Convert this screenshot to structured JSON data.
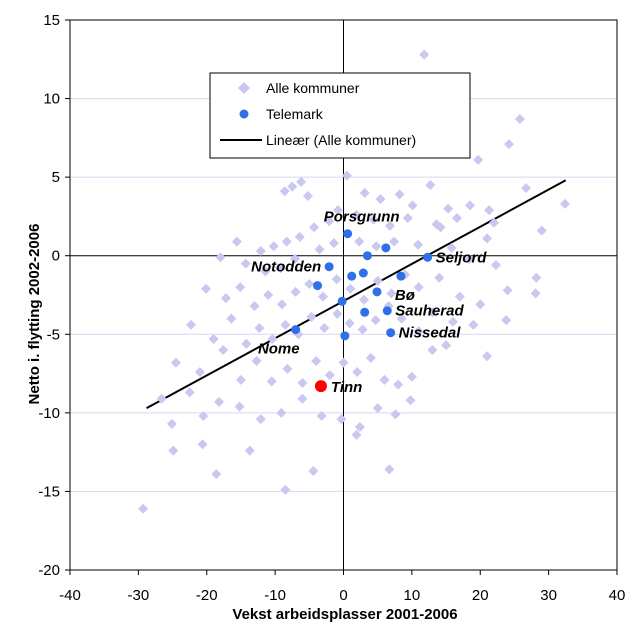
{
  "chart_data": {
    "type": "scatter",
    "title": "",
    "xlabel": "Vekst arbeidsplasser 2001-2006",
    "ylabel": "Netto i. flytting 2002-2006",
    "xlim": [
      -40,
      40
    ],
    "ylim": [
      -20,
      15
    ],
    "x_ticks": [
      -40,
      -30,
      -20,
      -10,
      0,
      10,
      20,
      30,
      40
    ],
    "y_ticks": [
      -20,
      -15,
      -10,
      -5,
      0,
      5,
      10,
      15
    ],
    "grid": "horizontal",
    "legend": {
      "placement": "top-center",
      "entries": [
        {
          "label": "Alle kommuner",
          "marker": "diamond",
          "color": "#c8c8f0"
        },
        {
          "label": "Telemark",
          "marker": "circle",
          "color": "#2f6fe8"
        },
        {
          "label": "Lineær (Alle kommuner)",
          "marker": "line",
          "color": "#000000"
        }
      ]
    },
    "series": [
      {
        "name": "Alle kommuner",
        "marker": "diamond",
        "color": "#c8c8f0",
        "points": [
          [
            11.8,
            12.8
          ],
          [
            25.8,
            8.7
          ],
          [
            24.2,
            7.1
          ],
          [
            19.7,
            6.1
          ],
          [
            26.7,
            4.3
          ],
          [
            32.4,
            3.3
          ],
          [
            18.5,
            3.2
          ],
          [
            21.3,
            2.9
          ],
          [
            16.6,
            2.4
          ],
          [
            22.0,
            2.1
          ],
          [
            14.2,
            1.8
          ],
          [
            21.0,
            1.1
          ],
          [
            29.0,
            1.6
          ],
          [
            -6.2,
            4.7
          ],
          [
            -7.5,
            4.4
          ],
          [
            -8.6,
            4.1
          ],
          [
            -5.2,
            3.8
          ],
          [
            0.5,
            5.1
          ],
          [
            3.1,
            4.0
          ],
          [
            5.4,
            3.6
          ],
          [
            8.2,
            3.9
          ],
          [
            10.1,
            3.2
          ],
          [
            12.7,
            4.5
          ],
          [
            15.3,
            3.0
          ],
          [
            -0.8,
            2.9
          ],
          [
            1.9,
            2.6
          ],
          [
            4.4,
            2.3
          ],
          [
            6.8,
            1.9
          ],
          [
            9.4,
            2.4
          ],
          [
            13.6,
            2.0
          ],
          [
            -2.1,
            2.2
          ],
          [
            -4.3,
            1.8
          ],
          [
            -6.4,
            1.2
          ],
          [
            -8.3,
            0.9
          ],
          [
            -10.2,
            0.6
          ],
          [
            -12.1,
            0.3
          ],
          [
            -15.6,
            0.9
          ],
          [
            -18.0,
            -0.1
          ],
          [
            -14.3,
            -0.5
          ],
          [
            -11.4,
            -1.0
          ],
          [
            -9.2,
            -0.8
          ],
          [
            -7.1,
            -0.2
          ],
          [
            -3.5,
            0.4
          ],
          [
            -1.4,
            0.8
          ],
          [
            2.3,
            0.9
          ],
          [
            4.8,
            0.6
          ],
          [
            7.4,
            0.9
          ],
          [
            10.9,
            0.7
          ],
          [
            15.8,
            0.5
          ],
          [
            18.4,
            -0.2
          ],
          [
            22.3,
            -0.6
          ],
          [
            -20.1,
            -2.1
          ],
          [
            -17.2,
            -2.7
          ],
          [
            -15.1,
            -2.0
          ],
          [
            -13.0,
            -3.2
          ],
          [
            -11.0,
            -2.5
          ],
          [
            -9.0,
            -3.1
          ],
          [
            -7.0,
            -2.3
          ],
          [
            -5.0,
            -1.8
          ],
          [
            -3.0,
            -2.6
          ],
          [
            -1.0,
            -1.5
          ],
          [
            1.0,
            -2.1
          ],
          [
            3.0,
            -2.8
          ],
          [
            5.0,
            -1.6
          ],
          [
            7.0,
            -2.4
          ],
          [
            9.0,
            -1.2
          ],
          [
            11.0,
            -2.0
          ],
          [
            14.0,
            -1.4
          ],
          [
            17.0,
            -2.6
          ],
          [
            20.0,
            -3.1
          ],
          [
            24.0,
            -2.2
          ],
          [
            28.2,
            -1.4
          ],
          [
            28.1,
            -2.4
          ],
          [
            -22.3,
            -4.4
          ],
          [
            -19.0,
            -5.3
          ],
          [
            -16.4,
            -4.0
          ],
          [
            -14.2,
            -5.6
          ],
          [
            -12.3,
            -4.6
          ],
          [
            -10.4,
            -5.3
          ],
          [
            -8.5,
            -4.4
          ],
          [
            -6.6,
            -5.0
          ],
          [
            -4.7,
            -3.9
          ],
          [
            -2.8,
            -4.6
          ],
          [
            -0.9,
            -3.7
          ],
          [
            0.9,
            -4.3
          ],
          [
            2.8,
            -4.7
          ],
          [
            4.7,
            -4.1
          ],
          [
            6.6,
            -3.2
          ],
          [
            8.5,
            -4.0
          ],
          [
            11.0,
            -4.8
          ],
          [
            13.0,
            -3.6
          ],
          [
            16.0,
            -4.2
          ],
          [
            19.0,
            -4.4
          ],
          [
            23.8,
            -4.1
          ],
          [
            -24.5,
            -6.8
          ],
          [
            -21.0,
            -7.4
          ],
          [
            -17.6,
            -6.0
          ],
          [
            -15.0,
            -7.9
          ],
          [
            -12.7,
            -6.7
          ],
          [
            -10.5,
            -8.0
          ],
          [
            -8.2,
            -7.2
          ],
          [
            -6.0,
            -8.1
          ],
          [
            -4.0,
            -6.7
          ],
          [
            -2.0,
            -7.6
          ],
          [
            0.0,
            -6.8
          ],
          [
            2.0,
            -7.4
          ],
          [
            4.0,
            -6.5
          ],
          [
            6.0,
            -7.9
          ],
          [
            8.0,
            -8.2
          ],
          [
            10.0,
            -7.7
          ],
          [
            13.0,
            -6.0
          ],
          [
            15.0,
            -5.7
          ],
          [
            21.0,
            -6.4
          ],
          [
            -18.2,
            -9.3
          ],
          [
            -15.2,
            -9.6
          ],
          [
            -12.1,
            -10.4
          ],
          [
            -9.1,
            -10.0
          ],
          [
            -6.0,
            -9.1
          ],
          [
            -3.2,
            -10.2
          ],
          [
            -0.3,
            -10.4
          ],
          [
            2.4,
            -10.9
          ],
          [
            5.0,
            -9.7
          ],
          [
            7.6,
            -10.1
          ],
          [
            9.8,
            -9.2
          ],
          [
            -20.5,
            -10.2
          ],
          [
            -25.1,
            -10.7
          ],
          [
            -24.9,
            -12.4
          ],
          [
            -20.6,
            -12.0
          ],
          [
            -18.6,
            -13.9
          ],
          [
            -8.5,
            -14.9
          ],
          [
            -4.4,
            -13.7
          ],
          [
            1.9,
            -11.4
          ],
          [
            6.7,
            -13.6
          ],
          [
            -29.3,
            -16.1
          ],
          [
            -22.5,
            -8.7
          ],
          [
            -26.6,
            -9.1
          ],
          [
            -13.7,
            -12.4
          ]
        ]
      },
      {
        "name": "Telemark",
        "marker": "circle",
        "color": "#2f6fe8",
        "points": [
          {
            "x": 0.6,
            "y": 1.4,
            "label": "Porsgrunn"
          },
          {
            "x": 6.2,
            "y": 0.5,
            "label": ""
          },
          {
            "x": 3.5,
            "y": 0.0,
            "label": ""
          },
          {
            "x": 12.3,
            "y": -0.1,
            "label": "Seljord"
          },
          {
            "x": -2.1,
            "y": -0.7,
            "label": "Notodden"
          },
          {
            "x": 1.2,
            "y": -1.3,
            "label": ""
          },
          {
            "x": 2.9,
            "y": -1.1,
            "label": ""
          },
          {
            "x": 8.4,
            "y": -1.3,
            "label": "Bø"
          },
          {
            "x": -3.8,
            "y": -1.9,
            "label": ""
          },
          {
            "x": 4.9,
            "y": -2.3,
            "label": ""
          },
          {
            "x": -0.2,
            "y": -2.9,
            "label": ""
          },
          {
            "x": 3.1,
            "y": -3.6,
            "label": ""
          },
          {
            "x": 6.4,
            "y": -3.5,
            "label": "Sauherad"
          },
          {
            "x": 6.9,
            "y": -4.9,
            "label": "Nissedal"
          },
          {
            "x": -7.0,
            "y": -4.7,
            "label": "Nome"
          },
          {
            "x": 0.2,
            "y": -5.1,
            "label": ""
          }
        ]
      },
      {
        "name": "Tinn",
        "marker": "circle",
        "color": "#ff0000",
        "points": [
          {
            "x": -3.3,
            "y": -8.3,
            "label": "Tinn"
          }
        ]
      }
    ],
    "trendline": {
      "name": "Lineær (Alle kommuner)",
      "color": "#000000",
      "x": [
        -28.8,
        32.5
      ],
      "y": [
        -9.7,
        4.8
      ]
    }
  },
  "labels_placement": {
    "Porsgrunn": "upper-left",
    "Seljord": "right",
    "Notodden": "left",
    "Bø": "lower-right",
    "Sauherad": "right",
    "Nissedal": "right",
    "Nome": "lower-left",
    "Tinn": "right"
  }
}
